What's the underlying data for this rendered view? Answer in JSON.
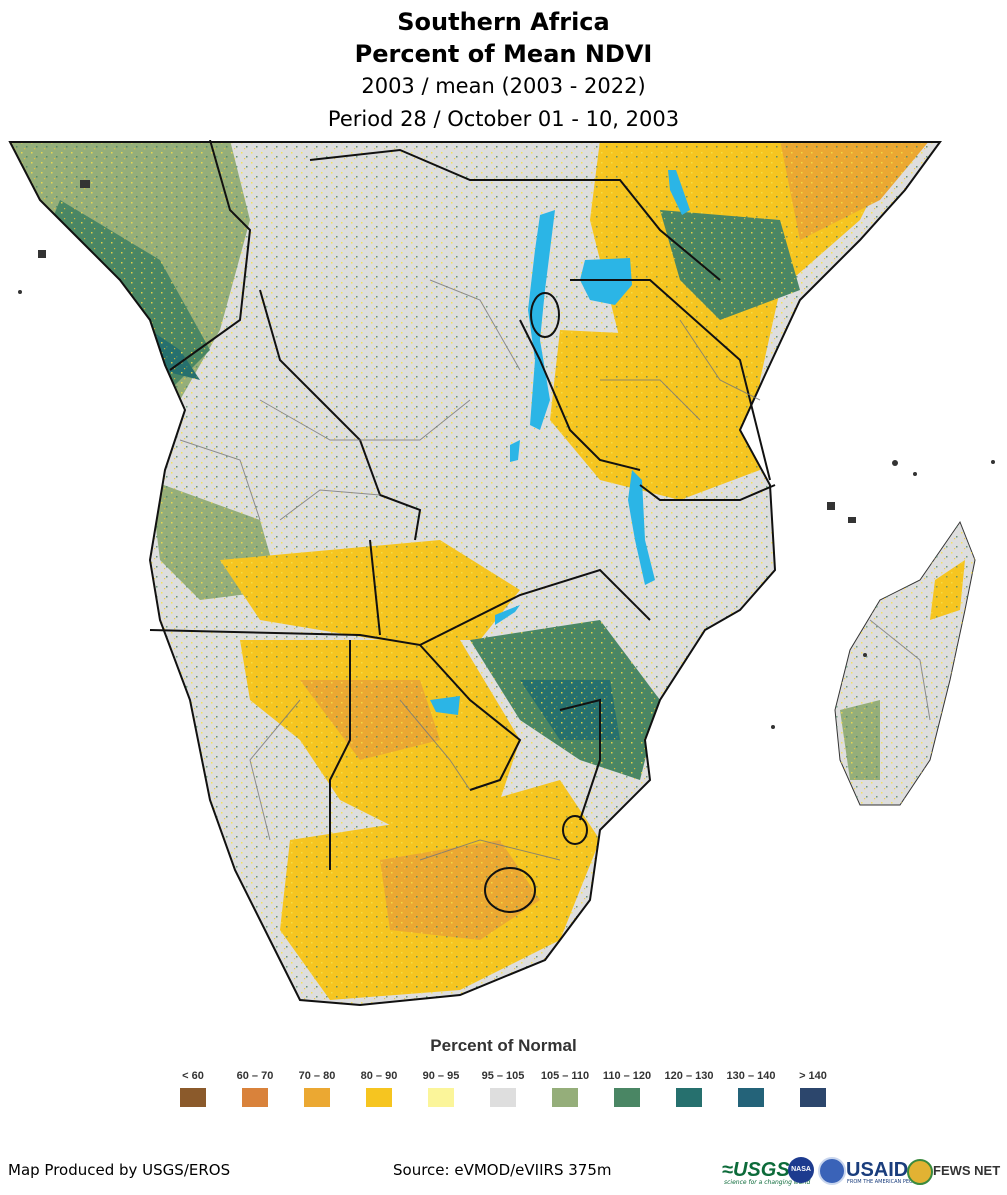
{
  "header": {
    "title": "Southern Africa",
    "subtitle": "Percent of Mean NDVI",
    "comparison": "2003 / mean (2003 - 2022)",
    "period": "Period 28 / October 01 - 10, 2003"
  },
  "legend": {
    "title": "Percent of Normal",
    "items": [
      {
        "label": "< 60",
        "color": "#8b5a2b"
      },
      {
        "label": "60 – 70",
        "color": "#d9823b"
      },
      {
        "label": "70 – 80",
        "color": "#eba832"
      },
      {
        "label": "80 – 90",
        "color": "#f6c520"
      },
      {
        "label": "90 – 95",
        "color": "#fbf59a"
      },
      {
        "label": "95 – 105",
        "color": "#dedede"
      },
      {
        "label": "105 – 110",
        "color": "#95ae7a"
      },
      {
        "label": "110 – 120",
        "color": "#4a8664"
      },
      {
        "label": "120 – 130",
        "color": "#26706e"
      },
      {
        "label": "130 – 140",
        "color": "#246379"
      },
      {
        "label": ">  140",
        "color": "#2c466c"
      }
    ]
  },
  "footer": {
    "producer": "Map Produced by USGS/EROS",
    "source": "Source: eVMOD/eVIIRS 375m"
  },
  "logos": {
    "usgs": "≈USGS",
    "usgs_tagline": "science for a changing world",
    "nasa": "NASA",
    "usaid": "USAID",
    "usaid_tagline": "FROM THE AMERICAN PEOPLE",
    "fews": "FEWS NET"
  },
  "colors": {
    "water": "#2bb5e6",
    "border_national": "#111111",
    "border_admin": "#777777",
    "ocean": "#ffffff"
  }
}
